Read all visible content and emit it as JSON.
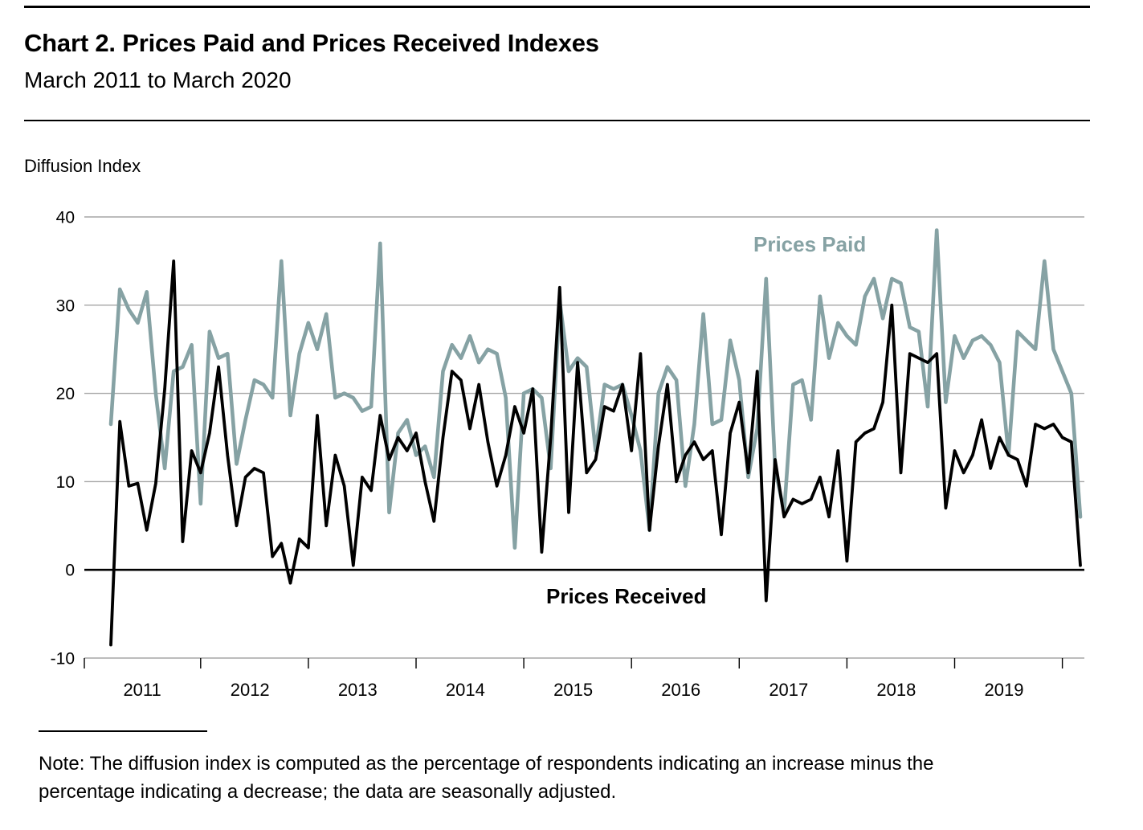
{
  "header": {
    "title": "Chart 2. Prices Paid and Prices Received Indexes",
    "subtitle": "March 2011 to March 2020"
  },
  "y_axis_unit": "Diffusion Index",
  "note": {
    "lines": [
      "Note:  The diffusion index is computed as the percentage of respondents indicating an increase minus the",
      "percentage indicating a decrease; the data are seasonally adjusted."
    ]
  },
  "colors": {
    "prices_paid": "#86a2a4",
    "prices_received": "#000000",
    "gridline": "#a6a6a6",
    "zero_line": "#000000"
  },
  "chart_data": {
    "type": "line",
    "title": "Chart 2. Prices Paid and Prices Received Indexes",
    "subtitle": "March 2011 to March 2020",
    "ylabel": "Diffusion Index",
    "ylim": [
      -10,
      40
    ],
    "yticks": [
      40,
      30,
      20,
      10,
      0,
      -10
    ],
    "x_start": "2011-03",
    "x_end": "2020-03",
    "x_interval": "monthly",
    "xtick_years": [
      2011,
      2012,
      2013,
      2014,
      2015,
      2016,
      2017,
      2018,
      2019
    ],
    "grid": "horizontal-only",
    "legend_position": "inline-annotations",
    "series": [
      {
        "name": "Prices Paid",
        "color": "#86a2a4",
        "values": [
          16.5,
          31.8,
          29.5,
          28.0,
          31.5,
          20.0,
          11.5,
          22.5,
          23.0,
          25.5,
          7.5,
          27.0,
          24.0,
          24.5,
          12.0,
          17.0,
          21.5,
          21.0,
          19.5,
          35.0,
          17.5,
          24.5,
          28.0,
          25.0,
          29.0,
          19.5,
          20.0,
          19.5,
          18.0,
          18.5,
          37.0,
          6.5,
          15.5,
          17.0,
          13.0,
          14.0,
          10.5,
          22.5,
          25.5,
          24.0,
          26.5,
          23.5,
          25.0,
          24.5,
          19.5,
          2.5,
          20.0,
          20.5,
          19.5,
          11.5,
          30.5,
          22.5,
          24.0,
          23.0,
          13.5,
          21.0,
          20.5,
          21.0,
          17.5,
          13.5,
          4.5,
          20.0,
          23.0,
          21.5,
          9.5,
          16.5,
          29.0,
          16.5,
          17.0,
          26.0,
          21.5,
          10.5,
          16.0,
          33.0,
          11.5,
          6.5,
          21.0,
          21.5,
          17.0,
          31.0,
          24.0,
          28.0,
          26.5,
          25.5,
          31.0,
          33.0,
          28.5,
          33.0,
          32.5,
          27.5,
          27.0,
          18.5,
          38.5,
          19.0,
          26.5,
          24.0,
          26.0,
          26.5,
          25.5,
          23.5,
          13.0,
          27.0,
          26.0,
          25.0,
          35.0,
          25.0,
          22.5,
          20.0,
          6.0
        ]
      },
      {
        "name": "Prices Received",
        "color": "#000000",
        "values": [
          -8.5,
          16.8,
          9.5,
          9.8,
          4.5,
          9.8,
          20.5,
          35.0,
          3.2,
          13.5,
          11.0,
          15.5,
          23.0,
          13.0,
          5.0,
          10.5,
          11.5,
          11.0,
          1.5,
          3.0,
          -1.5,
          3.5,
          2.5,
          17.5,
          5.0,
          13.0,
          9.5,
          0.5,
          10.5,
          9.0,
          17.5,
          12.5,
          15.0,
          13.5,
          15.5,
          10.0,
          5.5,
          15.0,
          22.5,
          21.5,
          16.0,
          21.0,
          14.5,
          9.5,
          13.0,
          18.5,
          15.5,
          20.5,
          2.0,
          15.0,
          32.0,
          6.5,
          23.5,
          11.0,
          12.5,
          18.5,
          18.0,
          21.0,
          13.5,
          24.5,
          4.5,
          14.0,
          21.0,
          10.0,
          13.0,
          14.5,
          12.5,
          13.5,
          4.0,
          15.5,
          19.0,
          11.0,
          22.5,
          -3.5,
          12.5,
          6.0,
          8.0,
          7.5,
          8.0,
          10.5,
          6.0,
          13.5,
          1.0,
          14.5,
          15.5,
          16.0,
          19.0,
          30.0,
          11.0,
          24.5,
          24.0,
          23.5,
          24.5,
          7.0,
          13.5,
          11.0,
          13.0,
          17.0,
          11.5,
          15.0,
          13.0,
          12.5,
          9.5,
          16.5,
          16.0,
          16.5,
          15.0,
          14.5,
          0.5
        ]
      }
    ]
  }
}
